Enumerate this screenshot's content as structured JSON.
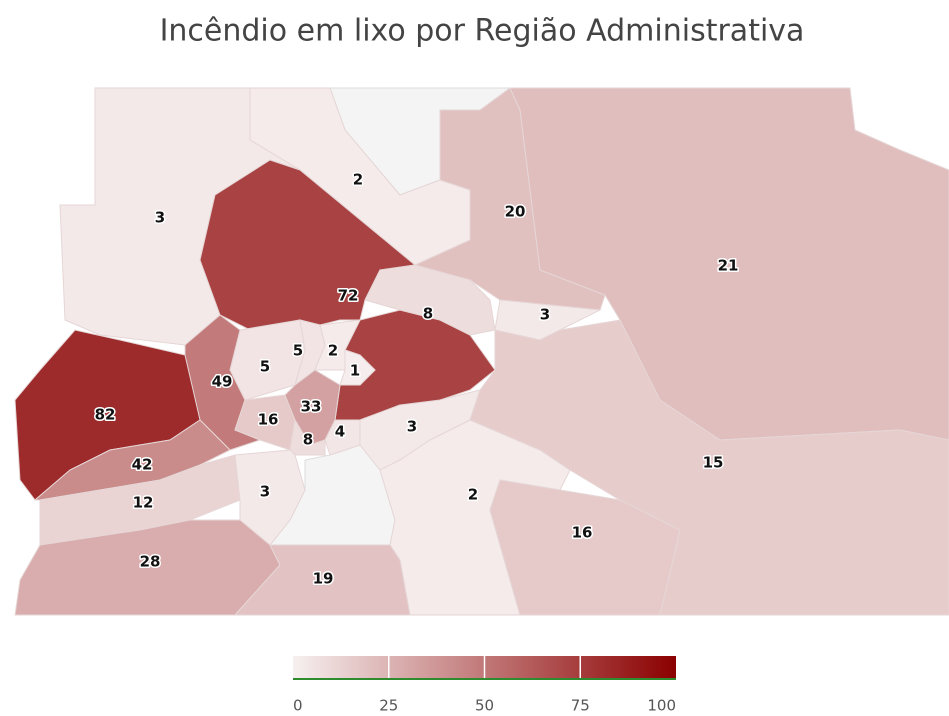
{
  "chart_data": {
    "type": "choropleth",
    "title": "Incêndio em lixo por Região Administrativa",
    "values": [
      2,
      3,
      20,
      21,
      72,
      8,
      3,
      5,
      5,
      2,
      1,
      49,
      82,
      16,
      33,
      8,
      4,
      3,
      42,
      12,
      3,
      2,
      16,
      15,
      28,
      19
    ],
    "colors": [
      "#f7f0f0",
      "#8b0000"
    ],
    "clim": [
      0,
      100
    ],
    "cticks": [
      0,
      25,
      50,
      75,
      100
    ]
  }
}
